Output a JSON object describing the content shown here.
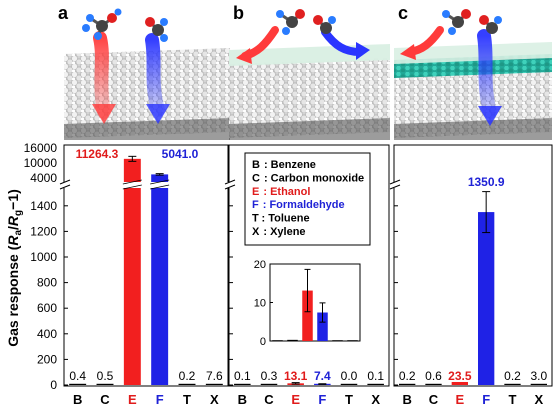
{
  "figure": {
    "y_axis_label_main": "Gas response (",
    "y_axis_label_Ra": "R",
    "y_axis_label_a": "a",
    "y_axis_label_slash": "/",
    "y_axis_label_Rg": "R",
    "y_axis_label_g": "g",
    "y_axis_label_end": "−1)",
    "y_ticks_lower": [
      "0",
      "200",
      "400",
      "600",
      "800",
      "1000",
      "1200",
      "1400"
    ],
    "y_ticks_upper": [
      "4000",
      "10000",
      "16000"
    ],
    "colors": {
      "ethanol": "#f21f1f",
      "formaldehyde": "#1f22e6",
      "default": "#000000",
      "ethanol_label": "#e01b1b",
      "formaldehyde_label": "#1f22d6",
      "film_gray": "#c9c9c9",
      "film_teal": "#2bbfa8",
      "film_green_layer": "#d9efe3"
    },
    "categories": [
      "B",
      "C",
      "E",
      "F",
      "T",
      "X"
    ],
    "legend": [
      {
        "code": "B",
        "text": ": Benzene",
        "color": "#000000"
      },
      {
        "code": "C",
        "text": ": Carbon monoxide",
        "color": "#000000"
      },
      {
        "code": "E",
        "text": ": Ethanol",
        "color": "#e01b1b"
      },
      {
        "code": "F",
        "text": ": Formaldehyde",
        "color": "#1f22d6"
      },
      {
        "code": "T",
        "text": ": Toluene",
        "color": "#000000"
      },
      {
        "code": "X",
        "text": ": Xylene",
        "color": "#000000"
      }
    ],
    "icons": [
      "ethanol-molecule-icon",
      "formaldehyde-molecule-icon",
      "red-arrow-icon",
      "blue-arrow-icon"
    ]
  },
  "chart_data": [
    {
      "panel": "a",
      "type": "bar",
      "categories": [
        "B",
        "C",
        "E",
        "F",
        "T",
        "X"
      ],
      "values": [
        0.4,
        0.5,
        11264.3,
        5041.0,
        0.2,
        7.6
      ],
      "labels": [
        "0.4",
        "0.5",
        "11264.3",
        "5041.0",
        "0.2",
        "7.6"
      ],
      "errors": [
        0,
        0,
        1000,
        300,
        0,
        0
      ],
      "ylabel": "Gas response (Ra/Rg−1)",
      "ylim_lower": [
        0,
        1500
      ],
      "ylim_upper": [
        4000,
        16000
      ]
    },
    {
      "panel": "b",
      "type": "bar",
      "categories": [
        "B",
        "C",
        "E",
        "F",
        "T",
        "X"
      ],
      "values": [
        0.1,
        0.3,
        13.1,
        7.4,
        0.0,
        0.1
      ],
      "labels": [
        "0.1",
        "0.3",
        "13.1",
        "7.4",
        "0.0",
        "0.1"
      ],
      "errors": [
        0,
        0,
        5.5,
        2.5,
        0,
        0
      ],
      "ylim_lower": [
        0,
        1500
      ],
      "inset": {
        "type": "bar",
        "categories": [
          "B",
          "C",
          "E",
          "F",
          "T",
          "X"
        ],
        "values": [
          0.1,
          0.3,
          13.1,
          7.4,
          0.0,
          0.1
        ],
        "errors": [
          0,
          0,
          5.5,
          2.5,
          0,
          0
        ],
        "ylim": [
          0,
          20
        ],
        "yticks": [
          "0",
          "10",
          "20"
        ]
      }
    },
    {
      "panel": "c",
      "type": "bar",
      "categories": [
        "B",
        "C",
        "E",
        "F",
        "T",
        "X"
      ],
      "values": [
        0.2,
        0.6,
        23.5,
        1350.9,
        0.2,
        3.0
      ],
      "labels": [
        "0.2",
        "0.6",
        "23.5",
        "1350.9",
        "0.2",
        "3.0"
      ],
      "errors": [
        0,
        0,
        0,
        160,
        0,
        0
      ],
      "ylim_lower": [
        0,
        1500
      ]
    }
  ],
  "panels": [
    {
      "letter": "a"
    },
    {
      "letter": "b"
    },
    {
      "letter": "c"
    }
  ]
}
